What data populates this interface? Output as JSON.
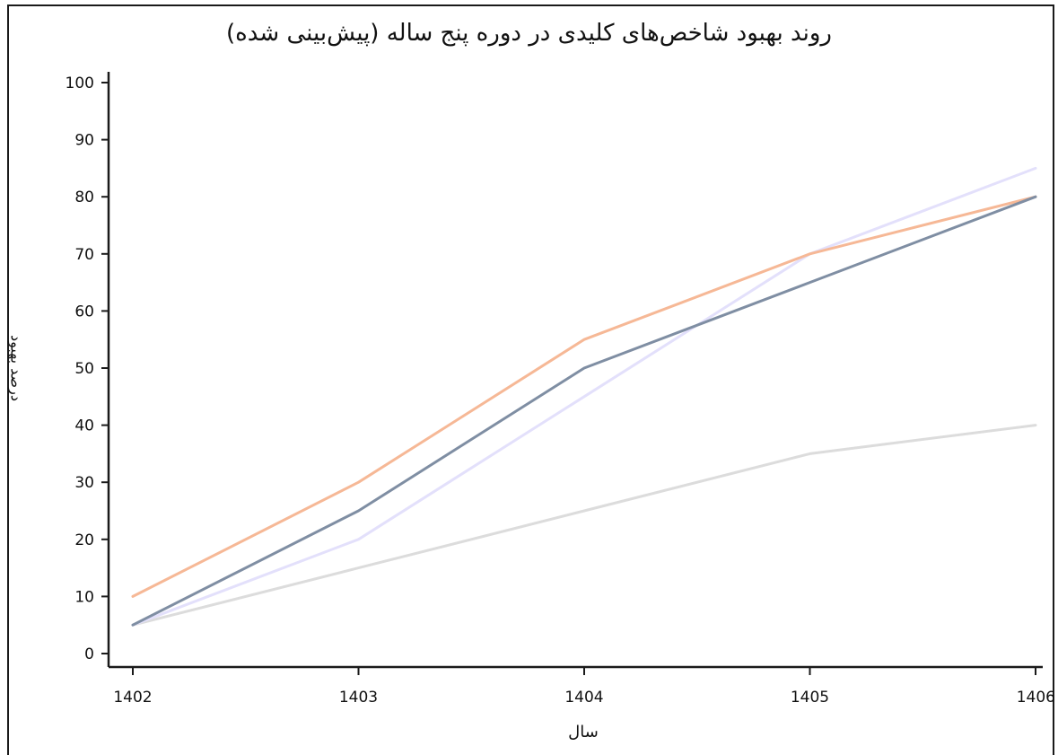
{
  "chart_data": {
    "type": "line",
    "title": "روند بهبود شاخص‌های کلیدی در دوره پنج ساله (پیش‌بینی شده)",
    "xlabel": "سال",
    "ylabel": "درصد بهبود",
    "categories": [
      "1402",
      "1403",
      "1404",
      "1405",
      "1406"
    ],
    "yticks": [
      "0",
      "10",
      "20",
      "30",
      "40",
      "50",
      "60",
      "70",
      "80",
      "90",
      "100"
    ],
    "ylim": [
      0,
      100
    ],
    "grid": false,
    "legend": "none",
    "series": [
      {
        "values": [
          5,
          15,
          25,
          35,
          40
        ],
        "color": "#dcdcdc"
      },
      {
        "values": [
          5,
          20,
          45,
          70,
          85
        ],
        "color": "#e3e0fb"
      },
      {
        "values": [
          10,
          30,
          55,
          70,
          80
        ],
        "color": "#f6b896"
      },
      {
        "values": [
          5,
          25,
          50,
          65,
          80
        ],
        "color": "#7f8ea3"
      }
    ]
  }
}
